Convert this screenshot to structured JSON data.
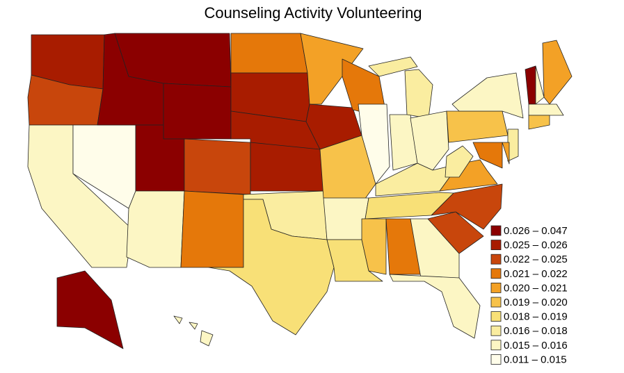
{
  "chart_data": {
    "type": "choropleth",
    "title": "Counseling Activity Volunteering",
    "legend": [
      {
        "label": "0.026 – 0.047",
        "color": "#8b0000"
      },
      {
        "label": "0.025 – 0.026",
        "color": "#a81c00"
      },
      {
        "label": "0.022 – 0.025",
        "color": "#c8460c"
      },
      {
        "label": "0.021 – 0.022",
        "color": "#e5780a"
      },
      {
        "label": "0.020 – 0.021",
        "color": "#f3a126"
      },
      {
        "label": "0.019 – 0.020",
        "color": "#f7c24a"
      },
      {
        "label": "0.018 – 0.019",
        "color": "#f8e077"
      },
      {
        "label": "0.016 – 0.018",
        "color": "#faeda0"
      },
      {
        "label": "0.015 – 0.016",
        "color": "#fcf6c4"
      },
      {
        "label": "0.011 – 0.015",
        "color": "#fffdea"
      }
    ]
  }
}
